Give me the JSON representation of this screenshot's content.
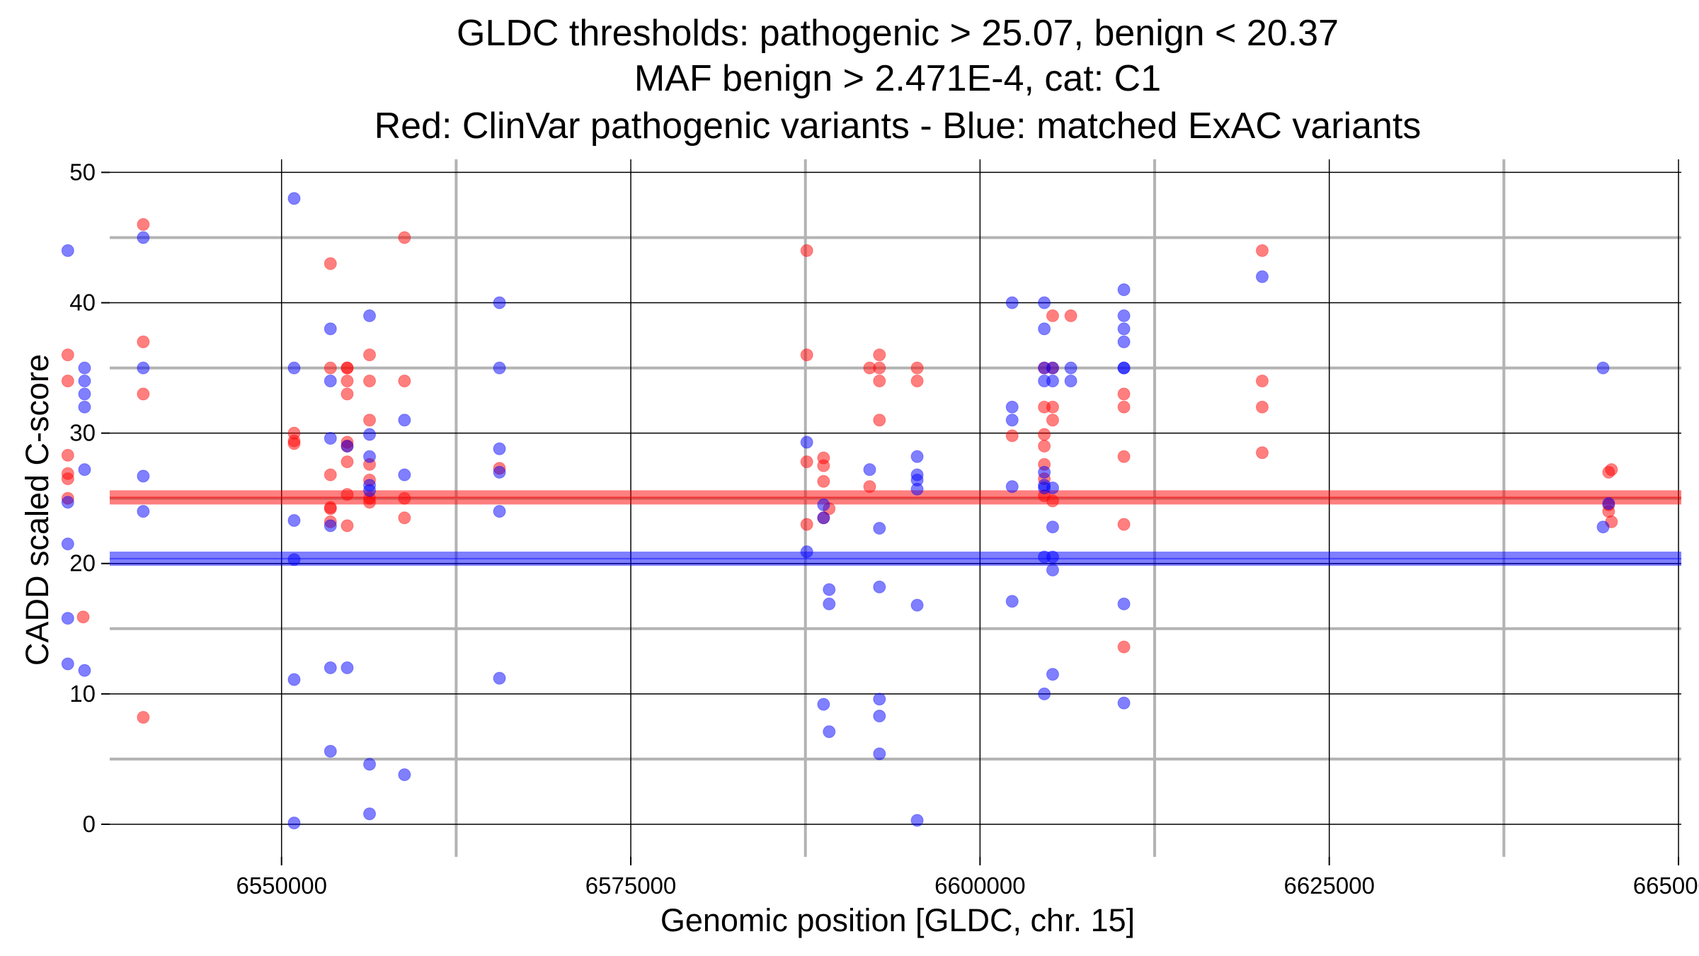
{
  "chart_data": {
    "type": "scatter",
    "title": [
      "GLDC thresholds: pathogenic > 25.07, benign < 20.37",
      "MAF benign > 2.471E-4, cat: C1",
      "Red: ClinVar pathogenic variants - Blue: matched ExAC variants"
    ],
    "xlabel": "Genomic position [GLDC, chr. 15]",
    "ylabel": "CADD scaled C-score",
    "xlim": [
      6537700,
      6650200
    ],
    "ylim": [
      -2.5,
      51
    ],
    "xticks": [
      6550000,
      6575000,
      6600000,
      6625000,
      6650000
    ],
    "xtick_labels": [
      "6550000",
      "6575000",
      "6600000",
      "6625000",
      "6650000"
    ],
    "xminor": [
      6537500,
      6562500,
      6587500,
      6612500,
      6637500
    ],
    "yticks": [
      0,
      10,
      20,
      30,
      40,
      50
    ],
    "ytick_labels": [
      "0",
      "10",
      "20",
      "30",
      "40",
      "50"
    ],
    "yminor": [
      5,
      15,
      25,
      35,
      45
    ],
    "thresholds": [
      {
        "name": "pathogenic",
        "value": 25.07,
        "color": "#ff0000"
      },
      {
        "name": "benign",
        "value": 20.37,
        "color": "#0000ff"
      }
    ],
    "colors": {
      "pathogenic": "#ff0000",
      "benign": "#0000ff"
    },
    "series": [
      {
        "name": "ClinVar pathogenic variants",
        "color": "#ff0000",
        "points": [
          [
            6534700,
            36
          ],
          [
            6534700,
            34
          ],
          [
            6534700,
            28.3
          ],
          [
            6534700,
            26.9
          ],
          [
            6534700,
            26.5
          ],
          [
            6534700,
            25
          ],
          [
            6535800,
            15.9
          ],
          [
            6540100,
            46
          ],
          [
            6540100,
            37
          ],
          [
            6540100,
            33
          ],
          [
            6540100,
            8.2
          ],
          [
            6550900,
            30
          ],
          [
            6550900,
            29.4
          ],
          [
            6550900,
            29.2
          ],
          [
            6553500,
            43
          ],
          [
            6553500,
            35
          ],
          [
            6553500,
            26.8
          ],
          [
            6553500,
            24.3
          ],
          [
            6553500,
            24.2
          ],
          [
            6553500,
            23.2
          ],
          [
            6554700,
            35
          ],
          [
            6554700,
            35
          ],
          [
            6554700,
            34
          ],
          [
            6554700,
            33
          ],
          [
            6554700,
            29.3
          ],
          [
            6554700,
            29
          ],
          [
            6554700,
            27.8
          ],
          [
            6554700,
            25.3
          ],
          [
            6554700,
            22.9
          ],
          [
            6556300,
            36
          ],
          [
            6556300,
            34
          ],
          [
            6556300,
            31
          ],
          [
            6556300,
            27.6
          ],
          [
            6556300,
            26.4
          ],
          [
            6556300,
            25
          ],
          [
            6556300,
            24.7
          ],
          [
            6558800,
            45
          ],
          [
            6558800,
            34
          ],
          [
            6558800,
            25
          ],
          [
            6558800,
            23.5
          ],
          [
            6565600,
            27.3
          ],
          [
            6587600,
            44
          ],
          [
            6587600,
            36
          ],
          [
            6587600,
            27.8
          ],
          [
            6587600,
            23
          ],
          [
            6588800,
            28.1
          ],
          [
            6588800,
            27.5
          ],
          [
            6588800,
            26.3
          ],
          [
            6588800,
            23.5
          ],
          [
            6589200,
            24.2
          ],
          [
            6592100,
            35
          ],
          [
            6592100,
            25.9
          ],
          [
            6592800,
            36
          ],
          [
            6592800,
            35
          ],
          [
            6592800,
            34
          ],
          [
            6592800,
            31
          ],
          [
            6595500,
            35
          ],
          [
            6595500,
            34
          ],
          [
            6604600,
            35
          ],
          [
            6604600,
            32
          ],
          [
            6604600,
            29.9
          ],
          [
            6604600,
            29
          ],
          [
            6604600,
            27.6
          ],
          [
            6604600,
            26.5
          ],
          [
            6604600,
            25.2
          ],
          [
            6605200,
            39
          ],
          [
            6605200,
            35
          ],
          [
            6605200,
            32
          ],
          [
            6605200,
            31
          ],
          [
            6605200,
            24.8
          ],
          [
            6602300,
            29.8
          ],
          [
            6606500,
            39
          ],
          [
            6610300,
            33
          ],
          [
            6610300,
            32
          ],
          [
            6610300,
            28.2
          ],
          [
            6610300,
            23
          ],
          [
            6610300,
            13.6
          ],
          [
            6620200,
            44
          ],
          [
            6620200,
            34
          ],
          [
            6620200,
            32
          ],
          [
            6620200,
            28.5
          ],
          [
            6645000,
            27
          ],
          [
            6645200,
            27.2
          ],
          [
            6645000,
            24.5
          ],
          [
            6645000,
            24
          ],
          [
            6645200,
            23.2
          ]
        ]
      },
      {
        "name": "matched ExAC variants",
        "color": "#0000ff",
        "points": [
          [
            6534700,
            44
          ],
          [
            6534700,
            24.7
          ],
          [
            6534700,
            21.5
          ],
          [
            6534700,
            15.8
          ],
          [
            6534700,
            12.3
          ],
          [
            6535900,
            35
          ],
          [
            6535900,
            34
          ],
          [
            6535900,
            33
          ],
          [
            6535900,
            32
          ],
          [
            6535900,
            27.2
          ],
          [
            6535900,
            11.8
          ],
          [
            6540100,
            45
          ],
          [
            6540100,
            35
          ],
          [
            6540100,
            26.7
          ],
          [
            6540100,
            24
          ],
          [
            6550900,
            48
          ],
          [
            6550900,
            35
          ],
          [
            6550900,
            23.3
          ],
          [
            6550900,
            20.3
          ],
          [
            6550900,
            11.1
          ],
          [
            6550900,
            0.1
          ],
          [
            6553500,
            38
          ],
          [
            6553500,
            34
          ],
          [
            6553500,
            29.6
          ],
          [
            6553500,
            22.9
          ],
          [
            6553500,
            12
          ],
          [
            6553500,
            5.6
          ],
          [
            6554700,
            29
          ],
          [
            6554700,
            12
          ],
          [
            6556300,
            39
          ],
          [
            6556300,
            29.9
          ],
          [
            6556300,
            28.2
          ],
          [
            6556300,
            26
          ],
          [
            6556300,
            25.6
          ],
          [
            6556300,
            4.6
          ],
          [
            6556300,
            0.8
          ],
          [
            6558800,
            31
          ],
          [
            6558800,
            26.8
          ],
          [
            6558800,
            3.8
          ],
          [
            6565600,
            40
          ],
          [
            6565600,
            35
          ],
          [
            6565600,
            28.8
          ],
          [
            6565600,
            27
          ],
          [
            6565600,
            24
          ],
          [
            6565600,
            11.2
          ],
          [
            6587600,
            29.3
          ],
          [
            6587600,
            20.9
          ],
          [
            6588800,
            24.5
          ],
          [
            6588800,
            23.5
          ],
          [
            6588800,
            9.2
          ],
          [
            6589200,
            18
          ],
          [
            6589200,
            16.9
          ],
          [
            6589200,
            7.1
          ],
          [
            6592100,
            27.2
          ],
          [
            6592800,
            22.7
          ],
          [
            6592800,
            18.2
          ],
          [
            6592800,
            9.6
          ],
          [
            6592800,
            8.3
          ],
          [
            6592800,
            5.4
          ],
          [
            6595500,
            28.2
          ],
          [
            6595500,
            26.8
          ],
          [
            6595500,
            26.4
          ],
          [
            6595500,
            25.7
          ],
          [
            6595500,
            16.8
          ],
          [
            6595500,
            0.3
          ],
          [
            6602300,
            40
          ],
          [
            6602300,
            32
          ],
          [
            6602300,
            31
          ],
          [
            6602300,
            25.9
          ],
          [
            6602300,
            17.1
          ],
          [
            6604600,
            40
          ],
          [
            6604600,
            38
          ],
          [
            6604600,
            35
          ],
          [
            6604600,
            34
          ],
          [
            6604600,
            27
          ],
          [
            6604600,
            26
          ],
          [
            6604600,
            25.8
          ],
          [
            6604600,
            20.5
          ],
          [
            6604600,
            10
          ],
          [
            6605200,
            35
          ],
          [
            6605200,
            34
          ],
          [
            6605200,
            25.8
          ],
          [
            6605200,
            22.8
          ],
          [
            6605200,
            20.5
          ],
          [
            6605200,
            19.5
          ],
          [
            6605200,
            11.5
          ],
          [
            6606500,
            35
          ],
          [
            6606500,
            34
          ],
          [
            6610300,
            41
          ],
          [
            6610300,
            39
          ],
          [
            6610300,
            38
          ],
          [
            6610300,
            37
          ],
          [
            6610300,
            35
          ],
          [
            6610300,
            35
          ],
          [
            6610300,
            16.9
          ],
          [
            6610300,
            9.3
          ],
          [
            6620200,
            42
          ],
          [
            6644600,
            35
          ],
          [
            6644600,
            22.8
          ],
          [
            6645000,
            24.6
          ]
        ]
      }
    ]
  }
}
